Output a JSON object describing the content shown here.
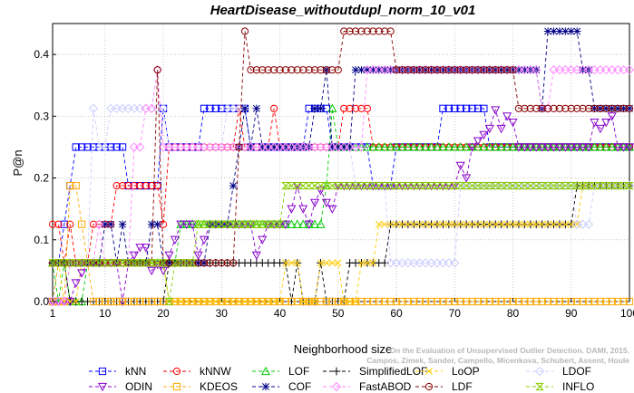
{
  "chart_data": {
    "type": "line",
    "title": "HeartDisease_withoutdupl_norm_10_v01",
    "xlabel": "Neighborhood size",
    "ylabel": "P@n",
    "xlim": [
      1,
      100
    ],
    "ylim": [
      0,
      0.45
    ],
    "xticks": [
      1,
      10,
      20,
      30,
      40,
      50,
      60,
      70,
      80,
      90,
      100
    ],
    "yticks": [
      0.0,
      0.1,
      0.2,
      0.3,
      0.4
    ],
    "ytick_labels": [
      "0.0",
      "0.1",
      "0.2",
      "0.3",
      "0.4"
    ],
    "grid": true,
    "legend_position": "bottom",
    "watermark": [
      "Campos, Zimek, Sander, Campello, Micenkova, Schubert, Assent, Houle",
      "On the Evaluation of Unsupervised Outlier Detection. DAMI, 2015."
    ],
    "series": [
      {
        "name": "kNN",
        "color": "#0000ff",
        "marker": "square",
        "points": [
          [
            1,
            0.0
          ],
          [
            2,
            0.0625
          ],
          [
            3,
            0.125
          ],
          [
            4,
            0.1875
          ],
          [
            5,
            0.25
          ],
          [
            13,
            0.25
          ],
          [
            14,
            0.1875
          ],
          [
            19,
            0.1875
          ],
          [
            20,
            0.3125
          ],
          [
            21,
            0.25
          ],
          [
            26,
            0.25
          ],
          [
            27,
            0.3125
          ],
          [
            34,
            0.3125
          ],
          [
            35,
            0.25
          ],
          [
            44,
            0.25
          ],
          [
            45,
            0.3125
          ],
          [
            48,
            0.3125
          ],
          [
            49,
            0.25
          ],
          [
            55,
            0.25
          ],
          [
            56,
            0.1875
          ],
          [
            59,
            0.1875
          ],
          [
            60,
            0.25
          ],
          [
            67,
            0.25
          ],
          [
            68,
            0.3125
          ],
          [
            75,
            0.3125
          ],
          [
            76,
            0.25
          ],
          [
            100,
            0.25
          ]
        ]
      },
      {
        "name": "kNNW",
        "color": "#ff0000",
        "marker": "circle",
        "points": [
          [
            1,
            0.125
          ],
          [
            2,
            0.125
          ],
          [
            3,
            0.0625
          ],
          [
            4,
            0.125
          ],
          [
            5,
            0.0625
          ],
          [
            7,
            0.0625
          ],
          [
            8,
            0.125
          ],
          [
            11,
            0.125
          ],
          [
            12,
            0.1875
          ],
          [
            19,
            0.1875
          ],
          [
            20,
            0.125
          ],
          [
            21,
            0.25
          ],
          [
            32,
            0.25
          ],
          [
            33,
            0.3125
          ],
          [
            34,
            0.25
          ],
          [
            38,
            0.25
          ],
          [
            39,
            0.3125
          ],
          [
            40,
            0.25
          ],
          [
            50,
            0.25
          ],
          [
            51,
            0.3125
          ],
          [
            55,
            0.3125
          ],
          [
            56,
            0.25
          ],
          [
            100,
            0.25
          ]
        ]
      },
      {
        "name": "LOF",
        "color": "#00cc00",
        "marker": "triangle",
        "points": [
          [
            1,
            0.0625
          ],
          [
            2,
            0.0
          ],
          [
            3,
            0.0625
          ],
          [
            4,
            0.0
          ],
          [
            6,
            0.0
          ],
          [
            7,
            0.0625
          ],
          [
            22,
            0.0625
          ],
          [
            23,
            0.125
          ],
          [
            47,
            0.125
          ],
          [
            48,
            0.1875
          ],
          [
            49,
            0.3125
          ],
          [
            50,
            0.25
          ],
          [
            100,
            0.25
          ]
        ]
      },
      {
        "name": "SimplifiedLOF",
        "color": "#000000",
        "marker": "plus",
        "points": [
          [
            1,
            0.0625
          ],
          [
            3,
            0.0625
          ],
          [
            4,
            0.0
          ],
          [
            20,
            0.0
          ],
          [
            21,
            0.0625
          ],
          [
            41,
            0.0625
          ],
          [
            42,
            0.0
          ],
          [
            43,
            0.0625
          ],
          [
            44,
            0.0
          ],
          [
            46,
            0.0
          ],
          [
            47,
            0.0625
          ],
          [
            48,
            0.0
          ],
          [
            51,
            0.0
          ],
          [
            52,
            0.0625
          ],
          [
            58,
            0.0625
          ],
          [
            59,
            0.125
          ],
          [
            90,
            0.125
          ],
          [
            91,
            0.1875
          ],
          [
            100,
            0.1875
          ]
        ]
      },
      {
        "name": "LoOP",
        "color": "#ffcc00",
        "marker": "x",
        "points": [
          [
            1,
            0.0
          ],
          [
            2,
            0.0625
          ],
          [
            3,
            0.0
          ],
          [
            5,
            0.0
          ],
          [
            6,
            0.0625
          ],
          [
            20,
            0.0625
          ],
          [
            21,
            0.0
          ],
          [
            40,
            0.0
          ],
          [
            41,
            0.0625
          ],
          [
            43,
            0.0625
          ],
          [
            44,
            0.0
          ],
          [
            46,
            0.0
          ],
          [
            47,
            0.0625
          ],
          [
            50,
            0.0625
          ],
          [
            51,
            0.0
          ],
          [
            53,
            0.0
          ],
          [
            54,
            0.0625
          ],
          [
            56,
            0.0625
          ],
          [
            57,
            0.125
          ],
          [
            91,
            0.125
          ],
          [
            92,
            0.1875
          ],
          [
            100,
            0.1875
          ]
        ]
      },
      {
        "name": "LDOF",
        "color": "#ccccff",
        "marker": "diamond",
        "points": [
          [
            1,
            0.0
          ],
          [
            3,
            0.0
          ],
          [
            4,
            0.0625
          ],
          [
            7,
            0.0625
          ],
          [
            8,
            0.3125
          ],
          [
            9,
            0.25
          ],
          [
            10,
            0.25
          ],
          [
            11,
            0.3125
          ],
          [
            20,
            0.3125
          ],
          [
            21,
            0.25
          ],
          [
            30,
            0.25
          ],
          [
            31,
            0.3125
          ],
          [
            34,
            0.3125
          ],
          [
            35,
            0.25
          ],
          [
            52,
            0.25
          ],
          [
            53,
            0.1875
          ],
          [
            58,
            0.1875
          ],
          [
            59,
            0.0625
          ],
          [
            70,
            0.0625
          ],
          [
            71,
            0.1875
          ],
          [
            90,
            0.1875
          ],
          [
            91,
            0.125
          ],
          [
            93,
            0.125
          ],
          [
            94,
            0.1875
          ],
          [
            100,
            0.1875
          ]
        ]
      },
      {
        "name": "ODIN",
        "color": "#8800cc",
        "marker": "triangle-down",
        "points": [
          [
            1,
            0.0
          ],
          [
            4,
            0.0
          ],
          [
            5,
            0.03
          ],
          [
            7,
            0.0625
          ],
          [
            12,
            0.0625
          ],
          [
            13,
            0.0
          ],
          [
            14,
            0.0625
          ],
          [
            15,
            0.075
          ],
          [
            16,
            0.0875
          ],
          [
            17,
            0.0875
          ],
          [
            18,
            0.05
          ],
          [
            19,
            0.06
          ],
          [
            20,
            0.05
          ],
          [
            21,
            0.075
          ],
          [
            22,
            0.1
          ],
          [
            23,
            0.125
          ],
          [
            25,
            0.125
          ],
          [
            26,
            0.075
          ],
          [
            27,
            0.1
          ],
          [
            28,
            0.125
          ],
          [
            35,
            0.125
          ],
          [
            36,
            0.075
          ],
          [
            37,
            0.1
          ],
          [
            38,
            0.125
          ],
          [
            41,
            0.125
          ],
          [
            42,
            0.15
          ],
          [
            43,
            0.1875
          ],
          [
            44,
            0.15
          ],
          [
            45,
            0.125
          ],
          [
            46,
            0.16
          ],
          [
            47,
            0.18
          ],
          [
            48,
            0.16
          ],
          [
            49,
            0.15
          ],
          [
            50,
            0.1875
          ],
          [
            70,
            0.1875
          ],
          [
            71,
            0.22
          ],
          [
            72,
            0.2
          ],
          [
            73,
            0.25
          ],
          [
            76,
            0.28
          ],
          [
            77,
            0.31
          ],
          [
            78,
            0.28
          ],
          [
            79,
            0.3
          ],
          [
            80,
            0.29
          ],
          [
            81,
            0.25
          ],
          [
            93,
            0.25
          ],
          [
            94,
            0.29
          ],
          [
            95,
            0.28
          ],
          [
            97,
            0.3
          ],
          [
            98,
            0.25
          ],
          [
            100,
            0.25
          ]
        ]
      },
      {
        "name": "KDEOS",
        "color": "#ffaa00",
        "marker": "square",
        "points": [
          [
            1,
            0.0
          ],
          [
            3,
            0.0
          ],
          [
            4,
            0.1875
          ],
          [
            5,
            0.1875
          ],
          [
            6,
            0.125
          ],
          [
            7,
            0.0625
          ],
          [
            8,
            0.0
          ],
          [
            100,
            0.0
          ]
        ]
      },
      {
        "name": "COF",
        "color": "#000088",
        "marker": "asterisk",
        "points": [
          [
            1,
            0.0625
          ],
          [
            9,
            0.0625
          ],
          [
            10,
            0.125
          ],
          [
            11,
            0.125
          ],
          [
            12,
            0.0625
          ],
          [
            13,
            0.125
          ],
          [
            14,
            0.0625
          ],
          [
            17,
            0.0625
          ],
          [
            18,
            0.125
          ],
          [
            19,
            0.125
          ],
          [
            20,
            0.0625
          ],
          [
            27,
            0.0625
          ],
          [
            28,
            0.125
          ],
          [
            31,
            0.125
          ],
          [
            32,
            0.1875
          ],
          [
            33,
            0.25
          ],
          [
            34,
            0.3125
          ],
          [
            35,
            0.25
          ],
          [
            36,
            0.3125
          ],
          [
            37,
            0.25
          ],
          [
            45,
            0.25
          ],
          [
            46,
            0.3125
          ],
          [
            47,
            0.3125
          ],
          [
            48,
            0.375
          ],
          [
            49,
            0.25
          ],
          [
            52,
            0.25
          ],
          [
            53,
            0.375
          ],
          [
            84,
            0.375
          ],
          [
            85,
            0.3125
          ],
          [
            86,
            0.4375
          ],
          [
            91,
            0.4375
          ],
          [
            92,
            0.375
          ],
          [
            93,
            0.375
          ],
          [
            94,
            0.3125
          ],
          [
            100,
            0.3125
          ]
        ]
      },
      {
        "name": "FastABOD",
        "color": "#ff88ff",
        "marker": "diamond",
        "points": [
          [
            1,
            0.0
          ],
          [
            3,
            0.0
          ],
          [
            4,
            0.0625
          ],
          [
            8,
            0.0625
          ],
          [
            9,
            0.125
          ],
          [
            10,
            0.0625
          ],
          [
            14,
            0.0625
          ],
          [
            15,
            0.25
          ],
          [
            16,
            0.25
          ],
          [
            17,
            0.3125
          ],
          [
            18,
            0.3125
          ],
          [
            19,
            0.375
          ],
          [
            20,
            0.25
          ],
          [
            54,
            0.25
          ],
          [
            55,
            0.375
          ],
          [
            84,
            0.375
          ],
          [
            85,
            0.3125
          ],
          [
            86,
            0.3125
          ],
          [
            87,
            0.375
          ],
          [
            100,
            0.375
          ]
        ]
      },
      {
        "name": "LDF",
        "color": "#880000",
        "marker": "circle",
        "points": [
          [
            1,
            0.0625
          ],
          [
            18,
            0.0625
          ],
          [
            19,
            0.375
          ],
          [
            20,
            0.0625
          ],
          [
            32,
            0.0625
          ],
          [
            33,
            0.25
          ],
          [
            34,
            0.4375
          ],
          [
            35,
            0.375
          ],
          [
            50,
            0.375
          ],
          [
            51,
            0.4375
          ],
          [
            59,
            0.4375
          ],
          [
            60,
            0.375
          ],
          [
            80,
            0.375
          ],
          [
            81,
            0.3125
          ],
          [
            100,
            0.3125
          ]
        ]
      },
      {
        "name": "INFLO",
        "color": "#88cc00",
        "marker": "hourglass",
        "points": [
          [
            1,
            0.0625
          ],
          [
            20,
            0.0625
          ],
          [
            21,
            0.0
          ],
          [
            22,
            0.0625
          ],
          [
            25,
            0.0625
          ],
          [
            26,
            0.125
          ],
          [
            40,
            0.125
          ],
          [
            41,
            0.1875
          ],
          [
            90,
            0.1875
          ],
          [
            91,
            0.1875
          ],
          [
            100,
            0.1875
          ]
        ]
      }
    ]
  }
}
